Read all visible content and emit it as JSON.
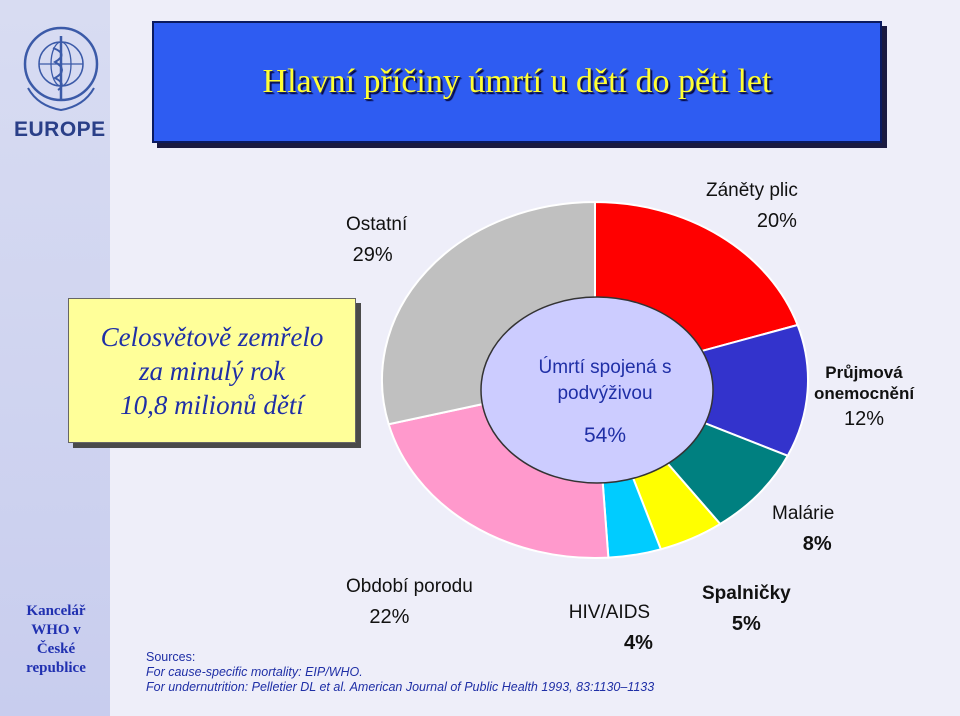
{
  "title": "Hlavní příčiny úmrtí u dětí do pěti let",
  "logo": {
    "text": "EUROPE"
  },
  "office": {
    "line1": "Kancelář",
    "line2": "WHO v",
    "line3": "České",
    "line4": "republice"
  },
  "total_box": {
    "line1": "Celosvětově zemřelo",
    "line2": "za minulý rok",
    "line3": "10,8 milionů dětí"
  },
  "center_label": {
    "line1": "Úmrtí spojená s",
    "line2": "podvýživou",
    "value": "54%"
  },
  "sources": {
    "heading": "Sources:",
    "line1": "For cause-specific mortality:  EIP/WHO.",
    "line2": "For undernutrition:  Pelletier DL et al. American Journal of Public Health 1993, 83:1130–1133"
  },
  "chart_data": {
    "type": "pie",
    "title": "",
    "slices": [
      {
        "label": "Záněty plic",
        "value": 20,
        "display": "20%",
        "color": "#ff0000"
      },
      {
        "label": "Průjmová onemocnění",
        "value": 12,
        "display": "12%",
        "color": "#3333cc"
      },
      {
        "label": "Malárie",
        "value": 8,
        "display": "8%",
        "color": "#008080"
      },
      {
        "label": "Spalničky",
        "value": 5,
        "display": "5%",
        "color": "#ffff00"
      },
      {
        "label": "HIV/AIDS",
        "value": 4,
        "display": "4%",
        "color": "#00ccff"
      },
      {
        "label": "Období porodu",
        "value": 22,
        "display": "22%",
        "color": "#ff99cc"
      },
      {
        "label": "Ostatní",
        "value": 29,
        "display": "29%",
        "color": "#c0c0c0"
      }
    ],
    "center_value": 54,
    "center_color": "#ccccff"
  }
}
